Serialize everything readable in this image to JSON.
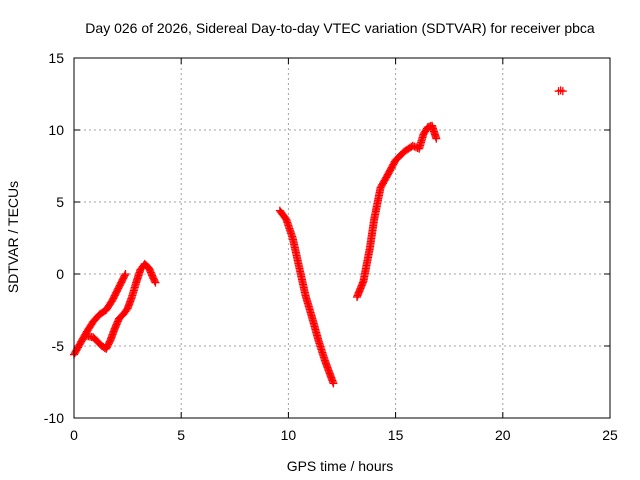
{
  "chart_data": {
    "type": "scatter",
    "title": "Day 026 of 2026, Sidereal Day-to-day VTEC variation (SDTVAR) for receiver pbca",
    "xlabel": "GPS time / hours",
    "ylabel": "SDTVAR / TECUs",
    "xlim": [
      0,
      25
    ],
    "ylim": [
      -10,
      15
    ],
    "xticks": [
      0,
      5,
      10,
      15,
      20,
      25
    ],
    "yticks": [
      -10,
      -5,
      0,
      5,
      10,
      15
    ],
    "xtick_labels": [
      "0",
      "5",
      "10",
      "15",
      "20",
      "25"
    ],
    "ytick_labels": [
      "-10",
      "-5",
      "0",
      "5",
      "10",
      "15"
    ],
    "grid": true,
    "marker": "plus",
    "marker_color": "#ff0000",
    "series": [
      {
        "name": "pbca",
        "segments": [
          {
            "x": [
              0.0,
              0.3,
              0.6,
              0.9,
              1.2,
              1.5,
              1.8,
              2.0,
              2.2,
              2.4
            ],
            "y": [
              -5.6,
              -4.8,
              -4.0,
              -3.3,
              -2.8,
              -2.5,
              -1.8,
              -1.2,
              -0.6,
              0.0
            ]
          },
          {
            "x": [
              0.6,
              0.9,
              1.1,
              1.3,
              1.5,
              1.7,
              1.9,
              2.1,
              2.3,
              2.5,
              2.7,
              2.9,
              3.1,
              3.3,
              3.5,
              3.7,
              3.8
            ],
            "y": [
              -4.3,
              -4.4,
              -4.7,
              -5.0,
              -5.2,
              -4.6,
              -3.8,
              -3.1,
              -2.8,
              -2.4,
              -1.6,
              -0.6,
              0.3,
              0.7,
              0.4,
              -0.3,
              -0.6
            ]
          },
          {
            "x": [
              9.6,
              9.9,
              10.2,
              10.5,
              10.8,
              11.1,
              11.4,
              11.7,
              12.0,
              12.1
            ],
            "y": [
              4.4,
              3.8,
              2.5,
              0.5,
              -1.5,
              -3.0,
              -4.6,
              -6.0,
              -7.2,
              -7.6
            ]
          },
          {
            "x": [
              13.2,
              13.5,
              13.8,
              14.0,
              14.3,
              14.6,
              15.0,
              15.4,
              15.8,
              16.1,
              16.3,
              16.5,
              16.7,
              16.9
            ],
            "y": [
              -1.6,
              -0.5,
              1.8,
              3.8,
              6.0,
              6.8,
              7.9,
              8.5,
              8.9,
              8.7,
              9.7,
              10.2,
              10.3,
              9.4
            ]
          },
          {
            "x": [
              22.6,
              22.7,
              22.8
            ],
            "y": [
              12.7,
              12.75,
              12.7
            ]
          }
        ]
      }
    ]
  }
}
